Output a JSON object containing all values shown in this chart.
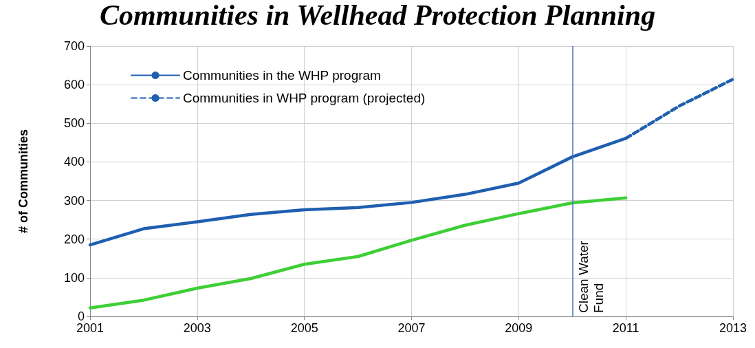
{
  "chart_data": {
    "type": "line",
    "title": "Communities in Wellhead Protection Planning",
    "ylabel": "# of Communities",
    "xlim": [
      2001,
      2013
    ],
    "xticks": [
      2001,
      2003,
      2005,
      2007,
      2009,
      2011,
      2013
    ],
    "ylim": [
      0,
      700
    ],
    "yticks": [
      0,
      100,
      200,
      300,
      400,
      500,
      600,
      700
    ],
    "grid": true,
    "legend": "top left",
    "marker": "none",
    "series": [
      {
        "name": "Communities in the WHP program",
        "color": "#1f5fb0",
        "line_style": "solid",
        "x": [
          2001,
          2002,
          2003,
          2004,
          2005,
          2006,
          2007,
          2008,
          2009,
          2010,
          2011
        ],
        "values": [
          185,
          227,
          245,
          264,
          276,
          282,
          295,
          316,
          345,
          413,
          461
        ]
      },
      {
        "name": "Communities in WHP program (projected)",
        "color": "#1f5fb0",
        "line_style": "dashed",
        "x": [
          2011,
          2012,
          2013
        ],
        "values": [
          461,
          545,
          614
        ]
      },
      {
        "color": "#3ecf36",
        "line_style": "solid",
        "x": [
          2001,
          2002,
          2003,
          2004,
          2005,
          2006,
          2007,
          2008,
          2009,
          2010,
          2011
        ],
        "values": [
          22,
          42,
          73,
          98,
          135,
          155,
          197,
          236,
          266,
          294,
          307
        ]
      }
    ],
    "ref_lines": [
      {
        "axis": "x",
        "value": 2010,
        "label": "Clean Water Fund",
        "color": "#4472c4"
      }
    ]
  }
}
